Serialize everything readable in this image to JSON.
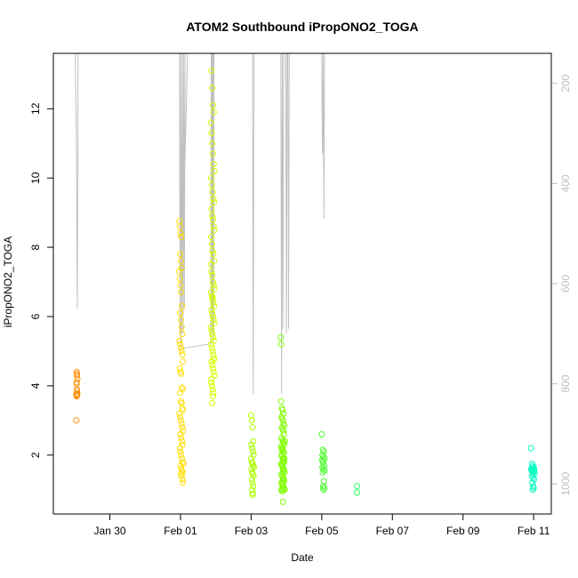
{
  "chart_data": {
    "type": "scatter",
    "title": "ATOM2 Southbound iPropONO2_TOGA",
    "xlabel": "Date",
    "ylabel": "iPropONO2_TOGA",
    "x_unit": "days (fractional) from Jan 29 00:00",
    "xlim": [
      -0.6,
      13.5
    ],
    "ylim": [
      0.3,
      13.6
    ],
    "x_ticks": [
      {
        "label": "Jan 30",
        "value": 1
      },
      {
        "label": "Feb 01",
        "value": 3
      },
      {
        "label": "Feb 03",
        "value": 5
      },
      {
        "label": "Feb 05",
        "value": 7
      },
      {
        "label": "Feb 07",
        "value": 9
      },
      {
        "label": "Feb 09",
        "value": 11
      },
      {
        "label": "Feb 11",
        "value": 13
      }
    ],
    "y_ticks": [
      2,
      4,
      6,
      8,
      10,
      12
    ],
    "right_axis": {
      "ylim": [
        1060,
        140
      ],
      "ticks": [
        200,
        400,
        600,
        800,
        1000
      ],
      "color": "#c0c0c0",
      "description": "pressure-like secondary axis, inverted"
    },
    "grid": false,
    "legend": "none",
    "colors": {
      "jan29": "#ff8c00",
      "feb01": "#ffdd00",
      "feb02": "#d4ff00",
      "feb03": "#aaff00",
      "feb04": "#80ff00",
      "feb05": "#40ff20",
      "feb06": "#20ff60",
      "feb11": "#00ffc0",
      "line": "#c0c0c0"
    },
    "series": [
      {
        "group": "jan29",
        "color": "#ff8c00",
        "x": [
          0.06,
          0.07,
          0.07,
          0.08,
          0.06,
          0.07,
          0.05,
          0.06,
          0.07,
          0.08,
          0.07,
          0.06,
          0.05
        ],
        "y": [
          4.4,
          4.35,
          4.3,
          4.2,
          4.1,
          3.85,
          3.75,
          3.7,
          3.72,
          3.78,
          3.9,
          4.05,
          3.0
        ]
      },
      {
        "group": "feb01",
        "color": "#ffdd00",
        "x": [
          2.97,
          2.98,
          3.0,
          3.02,
          2.99,
          3.01,
          3.03,
          2.96,
          2.98,
          3.0,
          3.02,
          3.04,
          2.99,
          3.01,
          3.03,
          3.05,
          2.97,
          2.99,
          3.01,
          3.03,
          3.05,
          3.07,
          2.98,
          3.0,
          3.02,
          3.04,
          3.06,
          2.99,
          3.01,
          3.03,
          3.05,
          3.07,
          2.97,
          2.99,
          3.01,
          3.03,
          3.05,
          3.07,
          3.0,
          3.02,
          3.04,
          3.06,
          2.98,
          3.0,
          3.02,
          3.04,
          3.06,
          3.08,
          3.0,
          3.02,
          3.04,
          3.06,
          3.01,
          3.03,
          3.05,
          3.07
        ],
        "y": [
          8.75,
          8.6,
          8.4,
          8.3,
          7.8,
          7.6,
          7.4,
          7.3,
          7.1,
          6.9,
          6.7,
          6.3,
          6.1,
          5.9,
          5.7,
          5.5,
          5.3,
          5.2,
          5.1,
          5.0,
          4.9,
          4.7,
          4.5,
          4.4,
          4.35,
          3.95,
          3.9,
          3.8,
          3.55,
          3.5,
          3.35,
          3.3,
          3.2,
          3.1,
          3.0,
          2.9,
          2.8,
          2.7,
          2.6,
          2.5,
          2.4,
          2.3,
          2.2,
          2.1,
          2.0,
          1.9,
          1.8,
          1.75,
          1.7,
          1.6,
          1.55,
          1.5,
          1.45,
          1.4,
          1.3,
          1.2
        ]
      },
      {
        "group": "feb02",
        "color": "#d4ff00",
        "x": [
          3.88,
          3.9,
          3.92,
          3.94,
          3.86,
          3.88,
          3.9,
          3.92,
          3.94,
          3.96,
          3.87,
          3.89,
          3.91,
          3.93,
          3.95,
          3.88,
          3.9,
          3.92,
          3.94,
          3.96,
          3.87,
          3.89,
          3.91,
          3.93,
          3.95,
          3.86,
          3.88,
          3.9,
          3.92,
          3.94,
          3.96,
          3.87,
          3.89,
          3.91,
          3.93,
          3.95,
          3.88,
          3.9,
          3.92,
          3.94,
          3.96,
          3.86,
          3.88,
          3.9,
          3.92,
          3.94,
          3.87,
          3.89,
          3.91,
          3.93,
          3.95,
          3.88,
          3.9,
          3.92,
          3.94,
          3.96,
          3.87,
          3.89,
          3.91,
          3.93,
          3.9,
          3.92,
          3.88,
          3.94,
          3.91
        ],
        "y": [
          13.1,
          12.6,
          12.1,
          11.9,
          11.6,
          11.3,
          11.0,
          10.7,
          10.4,
          10.2,
          10.0,
          9.8,
          9.6,
          9.4,
          9.3,
          9.1,
          8.9,
          8.8,
          8.6,
          8.5,
          8.3,
          8.1,
          7.9,
          7.8,
          7.6,
          7.5,
          7.3,
          7.2,
          7.0,
          6.9,
          6.8,
          6.7,
          6.6,
          6.5,
          6.4,
          6.3,
          6.2,
          6.1,
          6.0,
          5.9,
          5.8,
          5.7,
          5.6,
          5.5,
          5.4,
          5.3,
          5.2,
          5.1,
          5.0,
          4.9,
          4.8,
          4.7,
          4.6,
          4.5,
          4.4,
          4.3,
          4.1,
          4.0,
          3.9,
          3.8,
          3.5,
          3.7,
          4.2,
          4.75,
          6.55
        ]
      },
      {
        "group": "feb03",
        "color": "#aaff00",
        "x": [
          5.0,
          5.02,
          5.04,
          5.06,
          5.01,
          5.03,
          5.05,
          5.07,
          5.0,
          5.02,
          5.04,
          5.06,
          5.08,
          5.01,
          5.03,
          5.05,
          5.07,
          5.02,
          5.04,
          5.06,
          5.03,
          5.05,
          5.04
        ],
        "y": [
          3.15,
          3.0,
          2.8,
          2.4,
          2.3,
          2.2,
          2.1,
          2.0,
          1.9,
          1.8,
          1.75,
          1.7,
          1.65,
          1.6,
          1.5,
          1.45,
          1.4,
          1.3,
          1.2,
          1.1,
          1.0,
          0.9,
          0.85
        ]
      },
      {
        "group": "feb04",
        "color": "#80ff00",
        "x": [
          5.85,
          5.87,
          5.89,
          5.91,
          5.86,
          5.88,
          5.9,
          5.92,
          5.94,
          5.87,
          5.89,
          5.91,
          5.93,
          5.86,
          5.88,
          5.9,
          5.92,
          5.94,
          5.85,
          5.87,
          5.89,
          5.91,
          5.93,
          5.86,
          5.88,
          5.9,
          5.92,
          5.94,
          5.85,
          5.87,
          5.89,
          5.91,
          5.93,
          5.95,
          5.86,
          5.88,
          5.9,
          5.92,
          5.94,
          5.87,
          5.89,
          5.91,
          5.93,
          5.95,
          5.86,
          5.88,
          5.9,
          5.92,
          5.94,
          5.87,
          5.89,
          5.91,
          5.93,
          5.88,
          5.9,
          5.92,
          5.89,
          5.91,
          5.9,
          5.86,
          5.9,
          5.96,
          5.84,
          5.85,
          5.86
        ],
        "y": [
          3.55,
          3.35,
          3.3,
          3.2,
          3.1,
          3.05,
          3.0,
          2.9,
          2.85,
          2.8,
          2.75,
          2.7,
          2.6,
          2.5,
          2.45,
          2.4,
          2.35,
          2.3,
          2.25,
          2.2,
          2.15,
          2.1,
          2.05,
          2.0,
          1.95,
          1.9,
          1.85,
          1.8,
          1.75,
          1.7,
          1.65,
          1.6,
          1.55,
          1.5,
          1.45,
          1.4,
          1.35,
          1.3,
          1.25,
          1.2,
          1.15,
          1.1,
          1.05,
          1.0,
          1.0,
          0.95,
          1.3,
          1.6,
          1.9,
          2.15,
          2.2,
          2.1,
          1.9,
          1.7,
          1.5,
          1.3,
          1.1,
          1.0,
          0.65,
          1.2,
          1.8,
          2.4,
          5.4,
          5.2,
          1.0
        ]
      },
      {
        "group": "feb05",
        "color": "#40ff20",
        "x": [
          7.0,
          7.03,
          7.06,
          7.02,
          7.05,
          7.08,
          7.01,
          7.04,
          7.07,
          7.02,
          7.05,
          7.08,
          7.03,
          7.06,
          7.04,
          7.07,
          7.05
        ],
        "y": [
          2.6,
          2.15,
          2.1,
          2.0,
          1.95,
          1.9,
          1.85,
          1.8,
          1.7,
          1.65,
          1.6,
          1.55,
          1.5,
          1.25,
          1.1,
          1.05,
          1.0
        ]
      },
      {
        "group": "feb06",
        "color": "#20ff60",
        "x": [
          8.0,
          8.0
        ],
        "y": [
          1.1,
          0.92
        ]
      },
      {
        "group": "feb11",
        "color": "#00ffc0",
        "x": [
          12.92,
          12.95,
          12.98,
          13.0,
          12.93,
          12.96,
          12.99,
          13.02,
          12.94,
          12.97,
          13.0,
          13.03,
          12.95,
          12.98,
          13.01,
          12.96,
          12.99,
          13.0,
          12.97,
          13.01
        ],
        "y": [
          2.2,
          1.75,
          1.7,
          1.65,
          1.6,
          1.6,
          1.58,
          1.55,
          1.55,
          1.5,
          1.5,
          1.45,
          1.4,
          1.35,
          1.3,
          1.2,
          1.1,
          1.05,
          1.0,
          1.6
        ]
      }
    ],
    "altitude_line": {
      "color": "#c0c0c0",
      "axis": "right",
      "x": [
        0.0,
        0.02,
        0.05,
        0.08,
        0.1,
        0.13,
        2.95,
        2.97,
        2.99,
        3.01,
        3.03,
        3.05,
        3.07,
        3.09,
        3.11,
        3.13,
        3.15,
        3.18,
        3.2,
        3.0,
        3.85,
        3.86,
        3.87,
        3.88,
        3.89,
        3.9,
        3.91,
        3.92,
        3.93,
        3.94,
        3.95,
        3.97,
        3.99,
        4.01,
        4.03,
        5.02,
        5.04,
        5.06,
        5.08,
        5.1,
        5.82,
        5.84,
        5.86,
        5.88,
        5.9,
        5.92,
        5.94,
        5.96,
        5.98,
        6.0,
        6.02,
        6.04,
        6.06,
        6.08,
        7.0,
        7.02,
        7.04,
        7.06,
        7.08,
        7.1,
        7.2,
        7.5,
        9.2,
        12.9,
        12.92,
        12.94,
        12.96,
        12.98,
        13.0
      ],
      "y": [
        140,
        140,
        310,
        650,
        140,
        140,
        140,
        140,
        700,
        140,
        700,
        140,
        700,
        140,
        650,
        140,
        140,
        140,
        140,
        730,
        720,
        700,
        140,
        700,
        140,
        650,
        140,
        720,
        140,
        700,
        140,
        140,
        140,
        140,
        140,
        140,
        140,
        820,
        140,
        140,
        140,
        140,
        820,
        140,
        690,
        140,
        140,
        140,
        140,
        700,
        140,
        140,
        690,
        140,
        140,
        340,
        140,
        470,
        140,
        140,
        140,
        140,
        140,
        140,
        140,
        140,
        140,
        140,
        140
      ]
    }
  }
}
